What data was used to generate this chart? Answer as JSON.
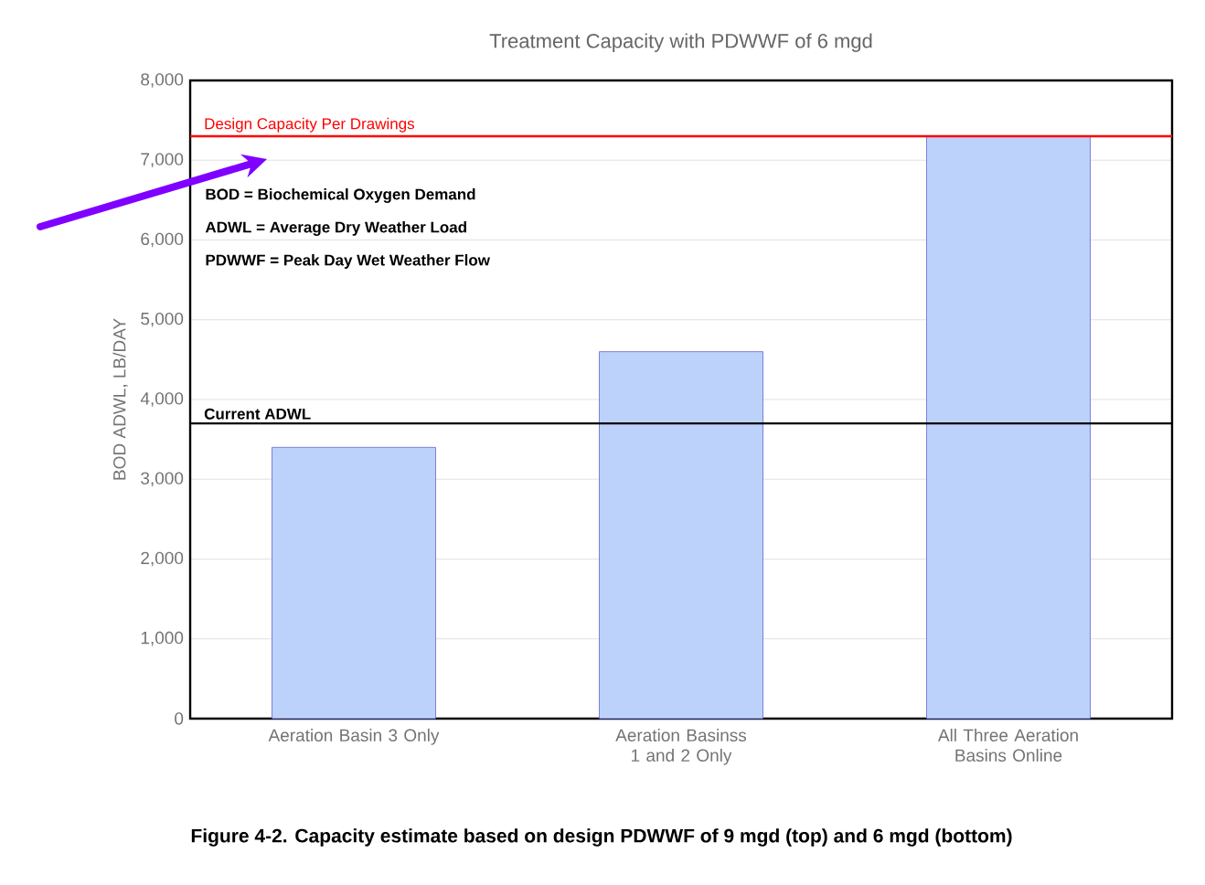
{
  "chart_data": {
    "type": "bar",
    "title": "Treatment Capacity with PDWWF of 6 mgd",
    "ylabel": "BOD ADWL, LB/DAY",
    "categories": [
      "Aeration Basin 3 Only",
      "Aeration Basinss 1 and 2 Only",
      "All Three Aeration Basins Online"
    ],
    "values": [
      3400,
      4600,
      7300
    ],
    "color": "#bcd2fb",
    "ylim": [
      0,
      8000
    ],
    "yticks": [
      0,
      {
        "value": 1000,
        "label": "1,000"
      },
      {
        "value": 2000,
        "label": "2,000"
      },
      {
        "value": 3000,
        "label": "3,000"
      },
      {
        "value": 4000,
        "label": "4,000"
      },
      {
        "value": 5000,
        "label": "5,000"
      },
      {
        "value": 6000,
        "label": "6,000"
      },
      {
        "value": 7000,
        "label": "7,000"
      },
      {
        "value": 8000,
        "label": "8,000"
      }
    ],
    "grid": "y",
    "ref_lines": [
      {
        "axis": "y",
        "value": 7300,
        "label": "Design Capacity Per Drawings",
        "color": "#ff0000"
      },
      {
        "axis": "y",
        "value": 3700,
        "label": "Current ADWL",
        "color": "#000000"
      }
    ],
    "annotations": [
      "BOD = Biochemical Oxygen Demand",
      "ADWL = Average Dry Weather Load",
      "PDWWF = Peak Day Wet Weather Flow",
      "Figure 4-2. Capacity estimate based on design PDWWF of 9 mgd (top) and 6 mgd (bottom)"
    ]
  }
}
